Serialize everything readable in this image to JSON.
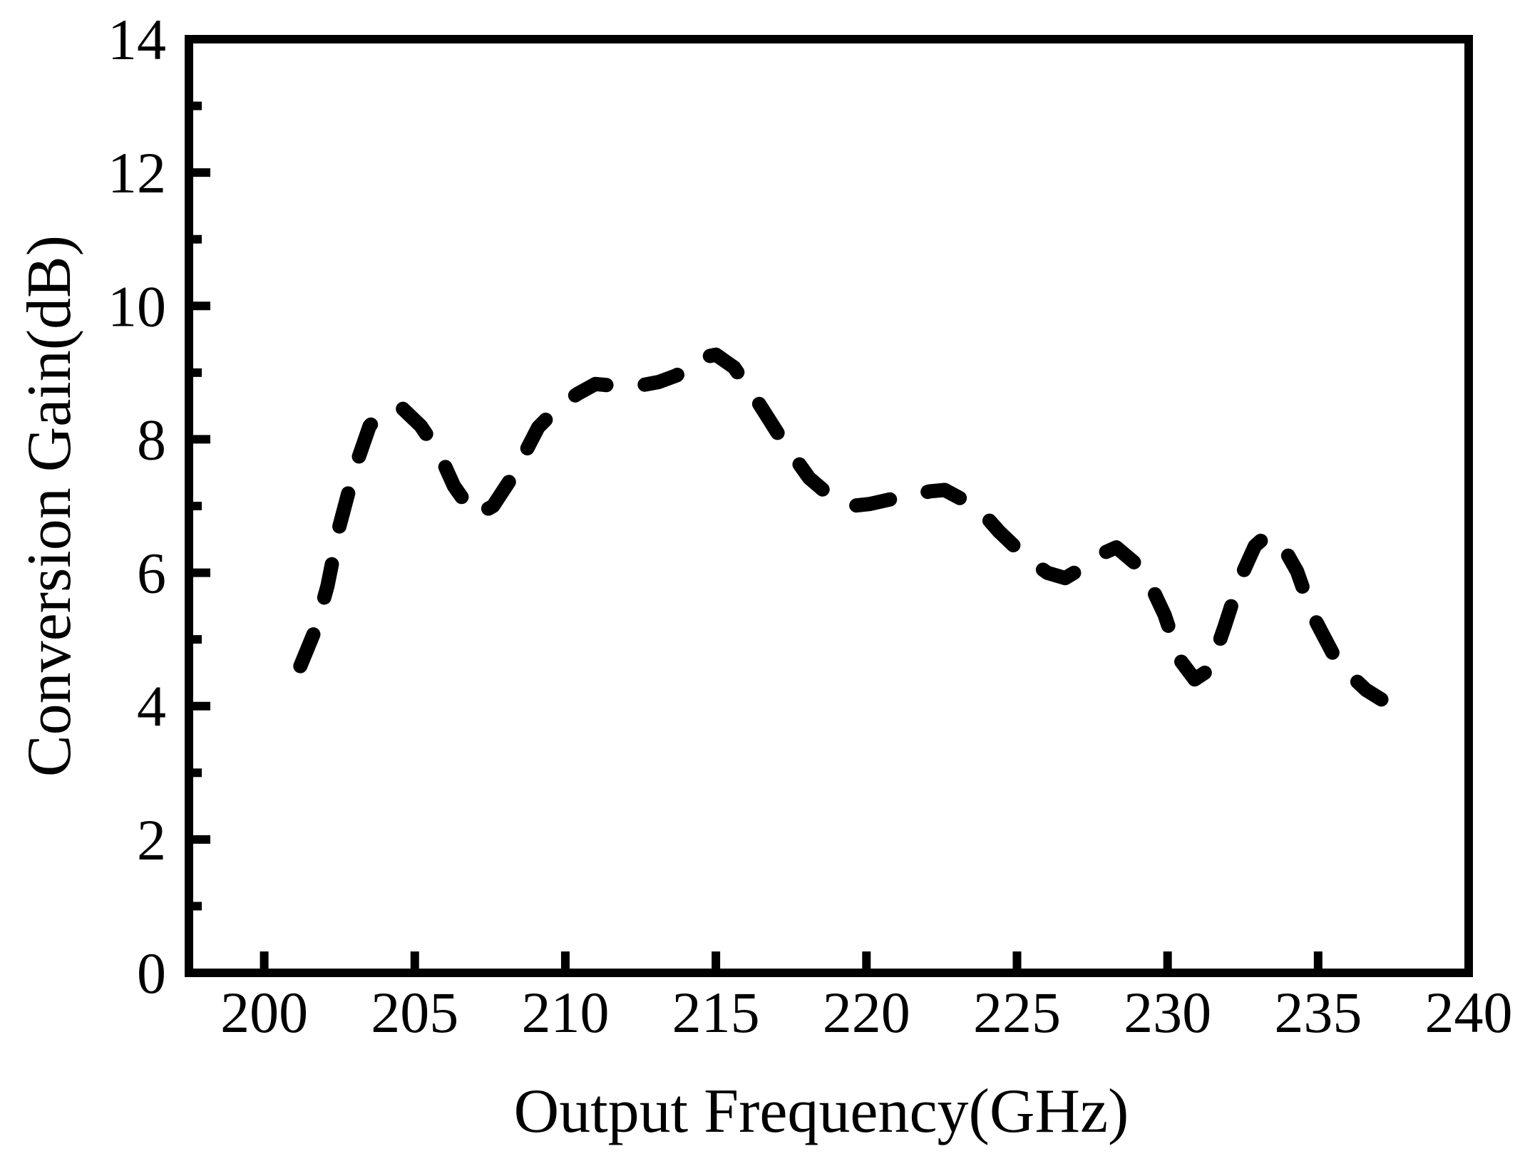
{
  "figure": {
    "background": "#ffffff",
    "ink_color": "#000000"
  },
  "chart_data": {
    "type": "line",
    "title": "",
    "xlabel": "Output Frequency(GHz)",
    "ylabel": "Conversion Gain(dB)",
    "xlim": [
      197.5,
      240
    ],
    "ylim": [
      0,
      14
    ],
    "x_ticks": [
      200,
      205,
      210,
      215,
      220,
      225,
      230,
      235,
      240
    ],
    "y_ticks": [
      0,
      2,
      4,
      6,
      8,
      10,
      12,
      14
    ],
    "y_minor_ticks": [
      1,
      3,
      5,
      7,
      9,
      11,
      13
    ],
    "grid": false,
    "legend": false,
    "series": [
      {
        "name": "Conversion Gain",
        "line_style": "dashed",
        "color": "#000000",
        "x": [
          201.2,
          201.7,
          202.1,
          202.5,
          203.0,
          203.5,
          204.0,
          204.6,
          205.2,
          205.8,
          206.3,
          207.0,
          207.6,
          208.3,
          209.1,
          209.8,
          210.4,
          211.0,
          211.7,
          212.4,
          213.1,
          213.7,
          214.4,
          215.0,
          215.6,
          216.3,
          217.2,
          218.1,
          218.8,
          219.5,
          220.1,
          220.8,
          221.5,
          222.1,
          222.6,
          223.1,
          223.6,
          224.4,
          225.3,
          226.0,
          226.6,
          227.2,
          227.8,
          228.3,
          228.9,
          229.4,
          229.9,
          230.4,
          230.9,
          231.4,
          231.9,
          232.4,
          232.9,
          233.3,
          233.8,
          234.3,
          234.8,
          235.5,
          236.1,
          236.6,
          237.1
        ],
        "y": [
          4.6,
          5.15,
          5.8,
          6.7,
          7.55,
          8.2,
          8.44,
          8.46,
          8.2,
          7.8,
          7.3,
          6.85,
          7.0,
          7.48,
          8.18,
          8.5,
          8.68,
          8.83,
          8.8,
          8.8,
          8.86,
          8.96,
          9.21,
          9.27,
          9.08,
          8.63,
          7.99,
          7.42,
          7.15,
          7.0,
          7.03,
          7.1,
          7.15,
          7.22,
          7.24,
          7.12,
          7.03,
          6.62,
          6.23,
          6.0,
          5.92,
          6.08,
          6.28,
          6.38,
          6.15,
          5.85,
          5.37,
          4.7,
          4.4,
          4.55,
          5.2,
          5.9,
          6.4,
          6.56,
          6.42,
          6.02,
          5.38,
          4.78,
          4.45,
          4.24,
          4.1
        ]
      }
    ]
  }
}
